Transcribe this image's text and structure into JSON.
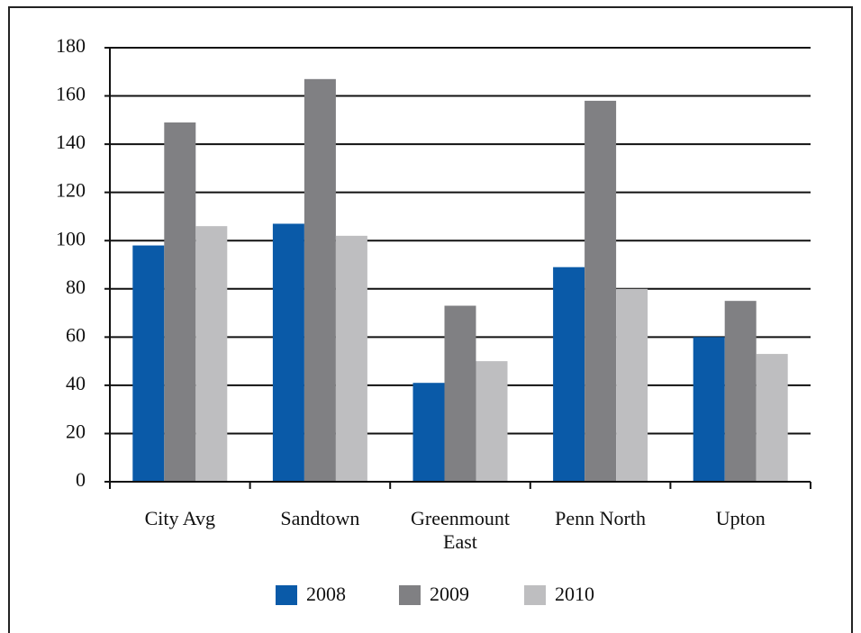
{
  "chart_data": {
    "type": "bar",
    "categories": [
      "City Avg",
      "Sandtown",
      "Greenmount East",
      "Penn North",
      "Upton"
    ],
    "series": [
      {
        "name": "2008",
        "color": "#0a5aa8",
        "values": [
          98,
          107,
          41,
          89,
          60
        ]
      },
      {
        "name": "2009",
        "color": "#808083",
        "values": [
          149,
          167,
          73,
          158,
          75
        ]
      },
      {
        "name": "2010",
        "color": "#bebec0",
        "values": [
          106,
          102,
          50,
          80,
          53
        ]
      }
    ],
    "ylim": [
      0,
      180
    ],
    "yticks": [
      0,
      20,
      40,
      60,
      80,
      100,
      120,
      140,
      160,
      180
    ],
    "grid": true,
    "legend": "bottom"
  }
}
